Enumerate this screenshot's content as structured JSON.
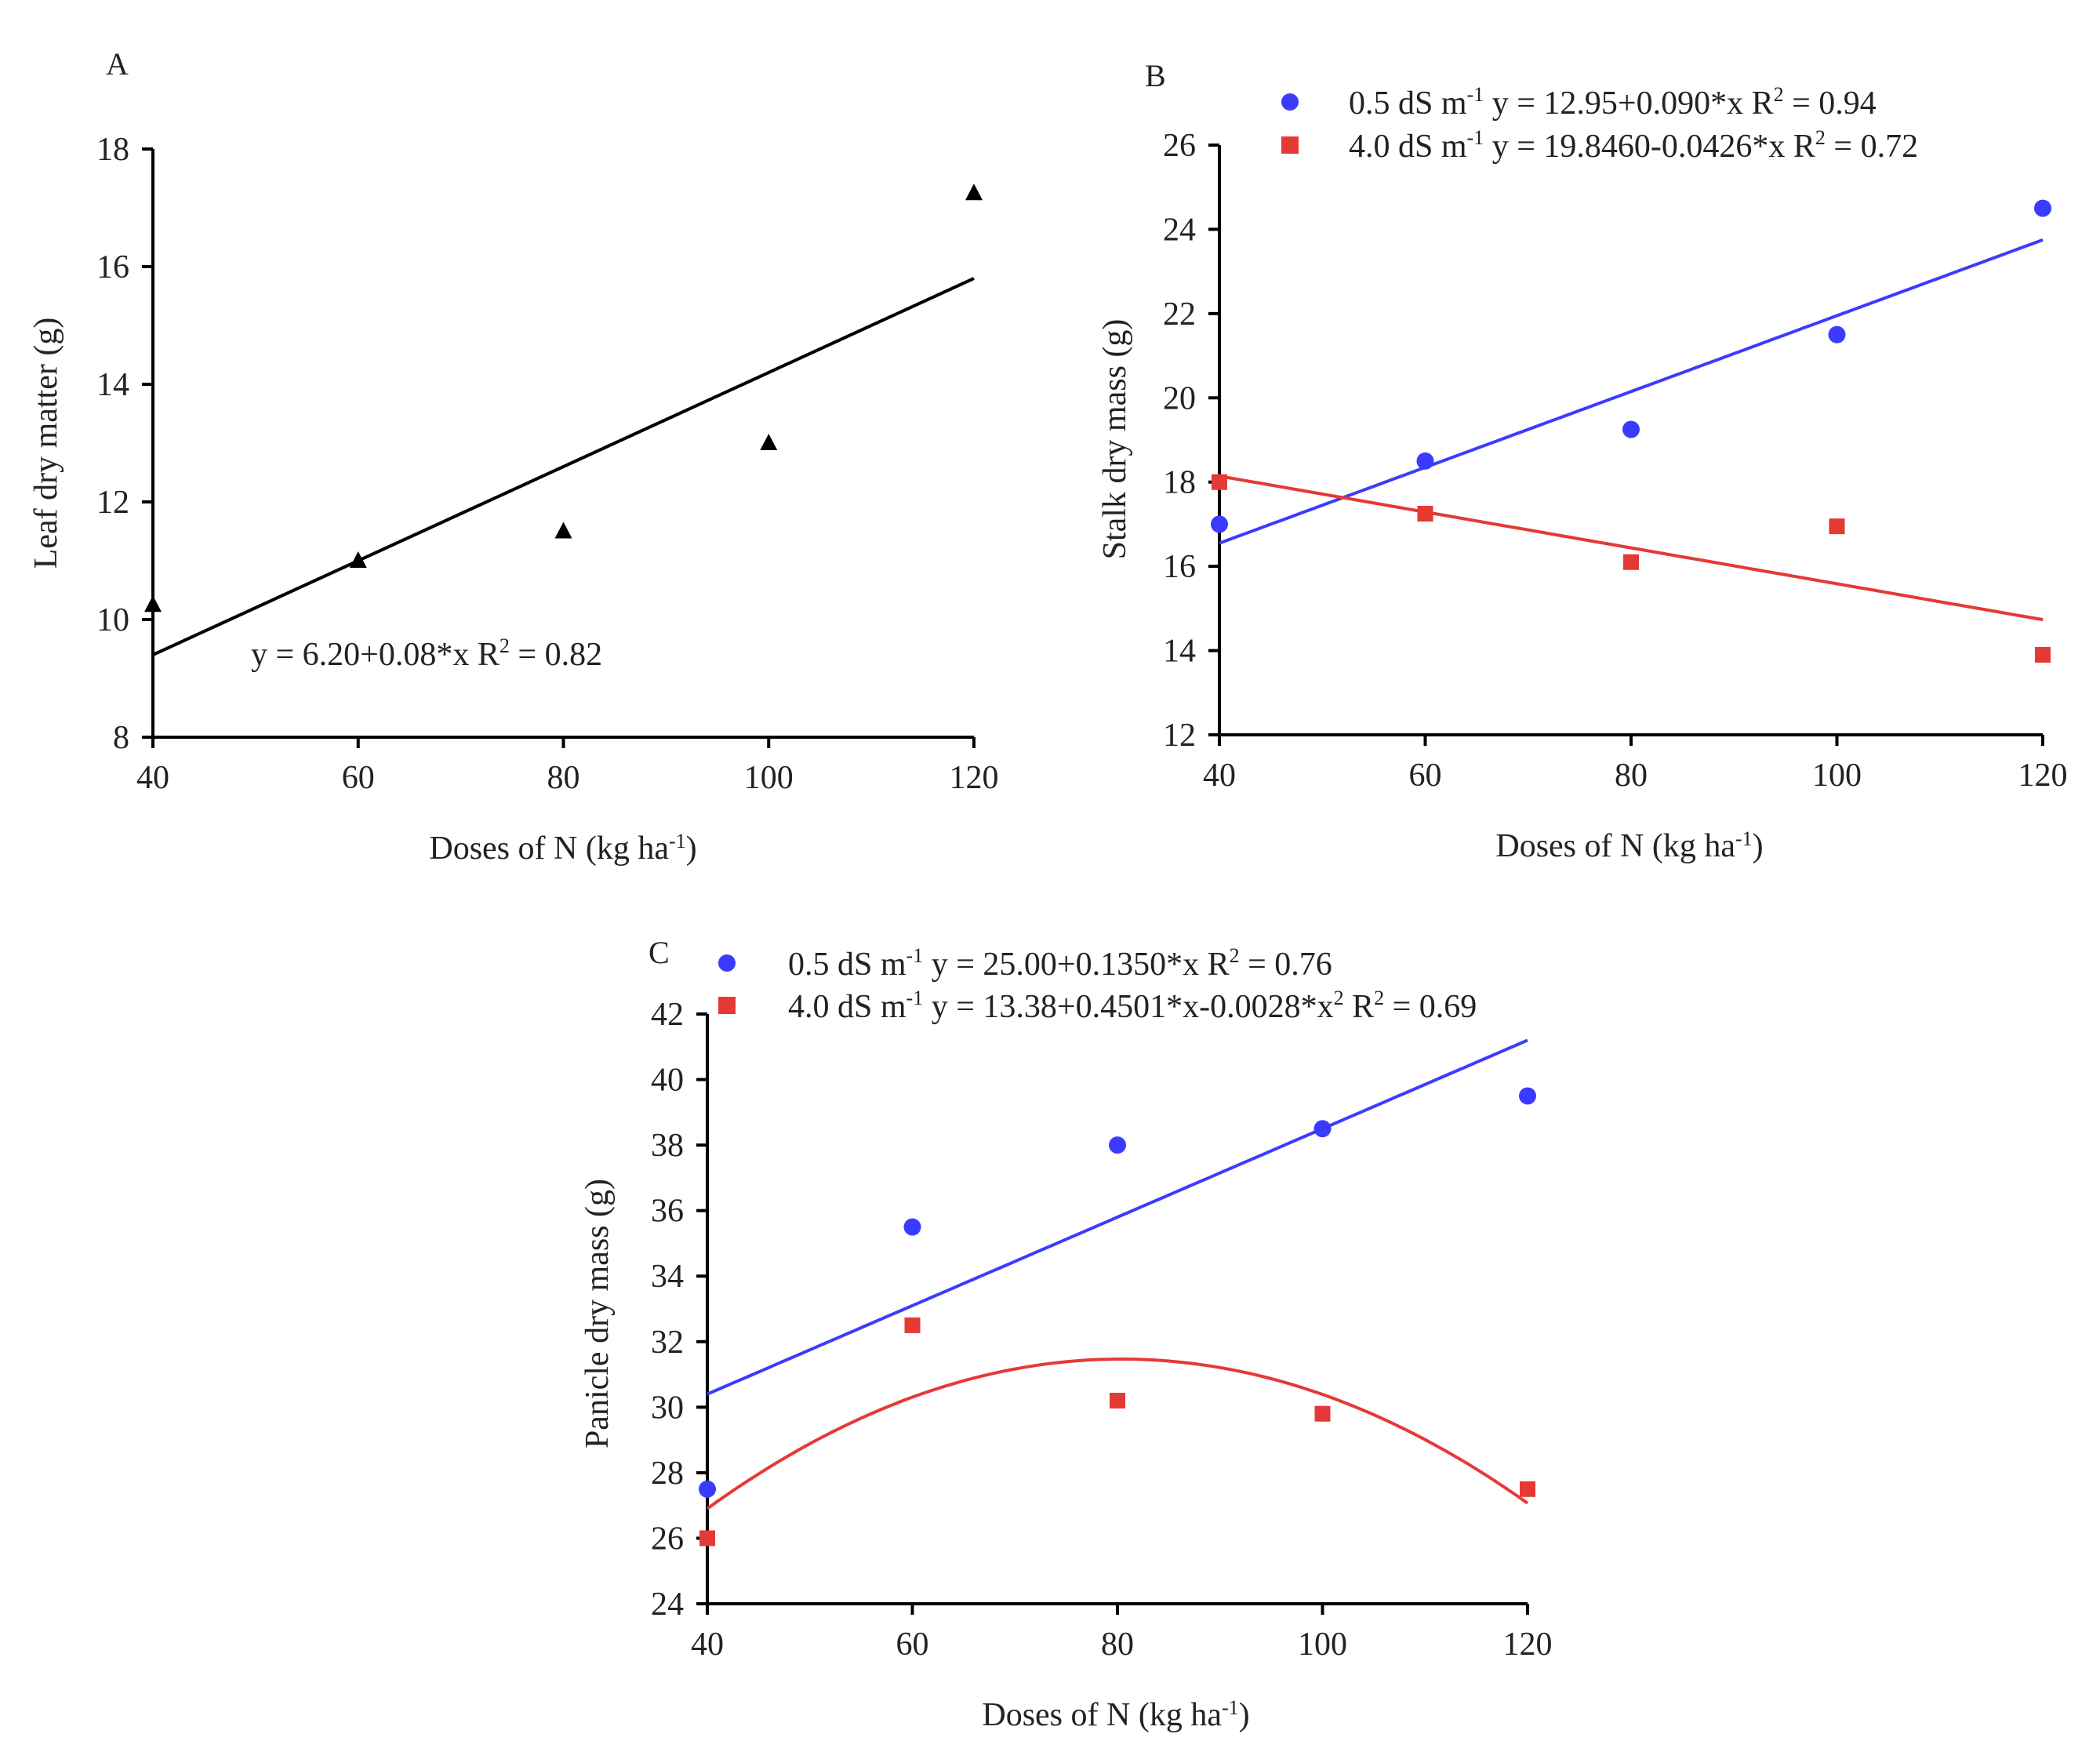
{
  "chart_data": [
    {
      "panel": "A",
      "type": "scatter",
      "xlabel": "Doses of N (kg ha-1)",
      "ylabel": "Leaf dry matter (g)",
      "xticks": [
        40,
        60,
        80,
        100,
        120
      ],
      "yticks": [
        8,
        10,
        12,
        14,
        16,
        18
      ],
      "xlim": [
        40,
        120
      ],
      "ylim": [
        8,
        18
      ],
      "series": [
        {
          "name": "",
          "color": "#000000",
          "marker": "triangle",
          "x": [
            40,
            60,
            80,
            100,
            120
          ],
          "y": [
            10.25,
            11.0,
            11.5,
            13.0,
            17.25
          ],
          "fit": {
            "type": "linear",
            "coef": [
              6.2,
              0.08
            ]
          },
          "equation": "y = 6.20+0.08*x  R² = 0.82"
        }
      ]
    },
    {
      "panel": "B",
      "type": "scatter",
      "xlabel": "Doses of N (kg ha-1)",
      "ylabel": "Stalk dry mass (g)",
      "xticks": [
        40,
        60,
        80,
        100,
        120
      ],
      "yticks": [
        12,
        14,
        16,
        18,
        20,
        22,
        24,
        26
      ],
      "xlim": [
        40,
        120
      ],
      "ylim": [
        12,
        26
      ],
      "series": [
        {
          "name": "0.5 dS m-1",
          "color": "#3b3bff",
          "marker": "circle",
          "x": [
            40,
            60,
            80,
            100,
            120
          ],
          "y": [
            17.0,
            18.5,
            19.25,
            21.5,
            24.5
          ],
          "fit": {
            "type": "linear",
            "coef": [
              12.95,
              0.09
            ]
          },
          "equation": "0.5 dS m⁻¹ y = 12.95+0.090*x  R² = 0.94"
        },
        {
          "name": "4.0 dS m-1",
          "color": "#e53935",
          "marker": "square",
          "x": [
            40,
            60,
            80,
            100,
            120
          ],
          "y": [
            18.0,
            17.25,
            16.1,
            16.95,
            13.9
          ],
          "fit": {
            "type": "linear",
            "coef": [
              19.846,
              -0.0426
            ]
          },
          "equation": "4.0 dS m⁻¹ y = 19.8460-0.0426*x  R² = 0.72"
        }
      ]
    },
    {
      "panel": "C",
      "type": "scatter",
      "xlabel": "Doses of N (kg ha-1)",
      "ylabel": "Panicle dry mass (g)",
      "xticks": [
        40,
        60,
        80,
        100,
        120
      ],
      "yticks": [
        24,
        26,
        28,
        30,
        32,
        34,
        36,
        38,
        40,
        42
      ],
      "xlim": [
        40,
        120
      ],
      "ylim": [
        24,
        42
      ],
      "series": [
        {
          "name": "0.5 dS m-1",
          "color": "#3b3bff",
          "marker": "circle",
          "x": [
            40,
            60,
            80,
            100,
            120
          ],
          "y": [
            27.5,
            35.5,
            38.0,
            38.5,
            39.5
          ],
          "fit": {
            "type": "linear",
            "coef": [
              25.0,
              0.135
            ]
          },
          "equation": "0.5 dS m⁻¹ y = 25.00+0.1350*x  R² = 0.76"
        },
        {
          "name": "4.0 dS m-1",
          "color": "#e53935",
          "marker": "square",
          "x": [
            40,
            60,
            80,
            100,
            120
          ],
          "y": [
            26.0,
            32.5,
            30.2,
            29.8,
            27.5
          ],
          "fit": {
            "type": "quadratic",
            "coef": [
              13.38,
              0.4501,
              -0.0028
            ]
          },
          "equation": "4.0 dS m⁻¹ y = 13.38+0.4501*x-0.0028*x²  R² = 0.69"
        }
      ]
    }
  ]
}
